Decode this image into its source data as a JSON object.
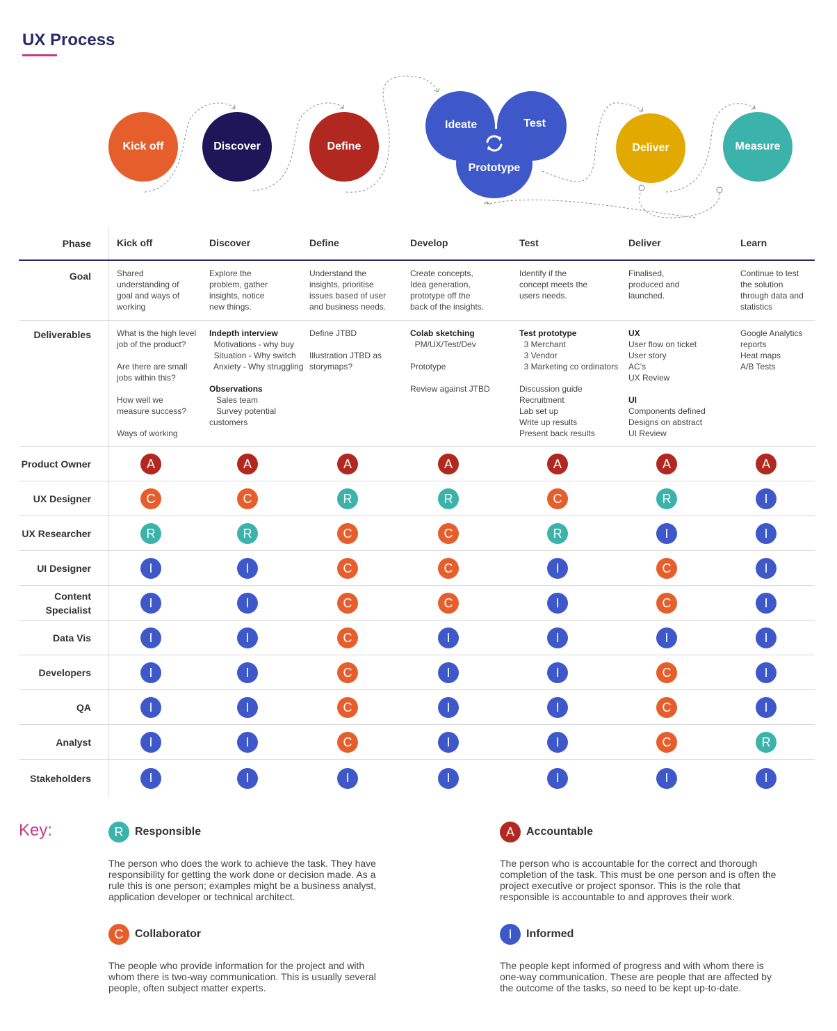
{
  "title": "UX Process",
  "process": {
    "kickoff": "Kick off",
    "discover": "Discover",
    "define": "Define",
    "ideate": "Ideate",
    "test": "Test",
    "prototype": "Prototype",
    "deliver": "Deliver",
    "measure": "Measure",
    "cycle_icon": "refresh-cycle-icon"
  },
  "table": {
    "phase_label": "Phase",
    "goal_label": "Goal",
    "deliverables_label": "Deliverables",
    "phases": [
      "Kick off",
      "Discover",
      "Define",
      "Develop",
      "Test",
      "Deliver",
      "Learn"
    ],
    "goals": [
      [
        "Shared",
        "understanding of",
        "goal and ways of",
        "working"
      ],
      [
        "Explore the",
        "problem, gather",
        "insights, notice",
        "new things."
      ],
      [
        "Understand the",
        "insights, prioritise",
        "issues based of user",
        "and business needs."
      ],
      [
        "Create concepts,",
        "Idea generation,",
        "prototype off the",
        "back of the insights."
      ],
      [
        "Identify if the",
        "concept meets the",
        "users needs."
      ],
      [
        "Finalised,",
        "produced and",
        "launched."
      ],
      [
        "Continue to test",
        "the solution",
        "through data and",
        "statistics"
      ]
    ],
    "deliverables": [
      [
        {
          "t": "What is the high level",
          "b": false
        },
        {
          "t": "job of the product?",
          "b": false
        },
        {
          "t": "",
          "b": false
        },
        {
          "t": "Are there are small",
          "b": false
        },
        {
          "t": "jobs within this?",
          "b": false
        },
        {
          "t": "",
          "b": false
        },
        {
          "t": "How well we",
          "b": false
        },
        {
          "t": "measure success?",
          "b": false
        },
        {
          "t": "",
          "b": false
        },
        {
          "t": "Ways of working",
          "b": false
        }
      ],
      [
        {
          "t": "Indepth interview",
          "b": true
        },
        {
          "t": "  Motivations - why buy",
          "b": false
        },
        {
          "t": "  Situation - Why switch",
          "b": false
        },
        {
          "t": "  Anxiety - Why struggling",
          "b": false
        },
        {
          "t": "",
          "b": false
        },
        {
          "t": "Observations",
          "b": true
        },
        {
          "t": "   Sales team",
          "b": false
        },
        {
          "t": "   Survey potential",
          "b": false
        },
        {
          "t": "customers",
          "b": false
        }
      ],
      [
        {
          "t": "Define JTBD",
          "b": false
        },
        {
          "t": "",
          "b": false
        },
        {
          "t": "Illustration JTBD as",
          "b": false
        },
        {
          "t": "storymaps?",
          "b": false
        }
      ],
      [
        {
          "t": "Colab sketching",
          "b": true
        },
        {
          "t": "  PM/UX/Test/Dev",
          "b": false
        },
        {
          "t": "",
          "b": false
        },
        {
          "t": "Prototype",
          "b": false
        },
        {
          "t": "",
          "b": false
        },
        {
          "t": "Review against JTBD",
          "b": false
        }
      ],
      [
        {
          "t": "Test prototype",
          "b": true
        },
        {
          "t": "  3 Merchant",
          "b": false
        },
        {
          "t": "  3 Vendor",
          "b": false
        },
        {
          "t": "  3 Marketing co ordinators",
          "b": false
        },
        {
          "t": "",
          "b": false
        },
        {
          "t": "Discussion guide",
          "b": false
        },
        {
          "t": "Recruitment",
          "b": false
        },
        {
          "t": "Lab set up",
          "b": false
        },
        {
          "t": "Write up results",
          "b": false
        },
        {
          "t": "Present back results",
          "b": false
        }
      ],
      [
        {
          "t": "UX",
          "b": true
        },
        {
          "t": "User flow on ticket",
          "b": false
        },
        {
          "t": "User story",
          "b": false
        },
        {
          "t": "AC’s",
          "b": false
        },
        {
          "t": "UX Review",
          "b": false
        },
        {
          "t": "",
          "b": false
        },
        {
          "t": "UI",
          "b": true
        },
        {
          "t": "Components defined",
          "b": false
        },
        {
          "t": "Designs on abstract",
          "b": false
        },
        {
          "t": "UI Review",
          "b": false
        }
      ],
      [
        {
          "t": "Google Analytics",
          "b": false
        },
        {
          "t": "reports",
          "b": false
        },
        {
          "t": "Heat maps",
          "b": false
        },
        {
          "t": "A/B Tests",
          "b": false
        }
      ]
    ],
    "roles": [
      {
        "name": [
          "Product Owner"
        ],
        "values": [
          "A",
          "A",
          "A",
          "A",
          "A",
          "A",
          "A"
        ]
      },
      {
        "name": [
          "UX Designer"
        ],
        "values": [
          "C",
          "C",
          "R",
          "R",
          "C",
          "R",
          "I"
        ]
      },
      {
        "name": [
          "UX Researcher"
        ],
        "values": [
          "R",
          "R",
          "C",
          "C",
          "R",
          "I",
          "I"
        ]
      },
      {
        "name": [
          "UI Designer"
        ],
        "values": [
          "I",
          "I",
          "C",
          "C",
          "I",
          "C",
          "I"
        ]
      },
      {
        "name": [
          "Content",
          "Specialist"
        ],
        "values": [
          "I",
          "I",
          "C",
          "C",
          "I",
          "C",
          "I"
        ]
      },
      {
        "name": [
          "Data Vis"
        ],
        "values": [
          "I",
          "I",
          "C",
          "I",
          "I",
          "I",
          "I"
        ]
      },
      {
        "name": [
          "Developers"
        ],
        "values": [
          "I",
          "I",
          "C",
          "I",
          "I",
          "C",
          "I"
        ]
      },
      {
        "name": [
          "QA"
        ],
        "values": [
          "I",
          "I",
          "C",
          "I",
          "I",
          "C",
          "I"
        ]
      },
      {
        "name": [
          "Analyst"
        ],
        "values": [
          "I",
          "I",
          "C",
          "I",
          "I",
          "C",
          "R"
        ]
      },
      {
        "name": [
          "Stakeholders"
        ],
        "values": [
          "I",
          "I",
          "I",
          "I",
          "I",
          "I",
          "I"
        ]
      }
    ]
  },
  "key": {
    "title": "Key:",
    "items": [
      {
        "letter": "R",
        "name": "Responsible",
        "desc": "The person who does the work to achieve the task. They have responsibility for getting the work done or decision made. As a rule this is one person; examples might be a business analyst, application developer or technical architect."
      },
      {
        "letter": "A",
        "name": "Accountable",
        "desc": "The person who is accountable for the correct and thorough completion of the task. This must be one person and is often the project executive or project sponsor. This is the role that responsible is accountable to and approves their work."
      },
      {
        "letter": "C",
        "name": "Collaborator",
        "desc": "The people who provide information for the project and with whom there is two-way communication. This is usually several people, often subject matter experts."
      },
      {
        "letter": "I",
        "name": "Informed",
        "desc": "The people kept informed of progress and with whom there is one-way communication. These are people that are affected by the outcome of the tasks, so need to be kept up-to-date."
      }
    ]
  },
  "colors": {
    "accountable": "#b0281f",
    "collaborator": "#e65e2c",
    "responsible": "#3bb3ab",
    "informed": "#3e58c9",
    "title": "#2a2a6b",
    "accent": "#c23b85"
  }
}
